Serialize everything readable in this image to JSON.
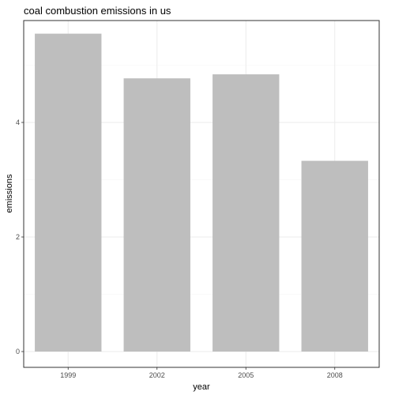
{
  "chart_data": {
    "type": "bar",
    "title": "coal combustion emissions in us",
    "xlabel": "year",
    "ylabel": "emissions",
    "categories": [
      "1999",
      "2002",
      "2005",
      "2008"
    ],
    "values": [
      5.55,
      4.77,
      4.84,
      3.33
    ],
    "ylim": [
      0,
      5.85
    ],
    "yticks": [
      0,
      2,
      4
    ],
    "ytick_labels": [
      "0",
      "2",
      "4"
    ],
    "grid": true,
    "bar_color": "#bebebe"
  }
}
